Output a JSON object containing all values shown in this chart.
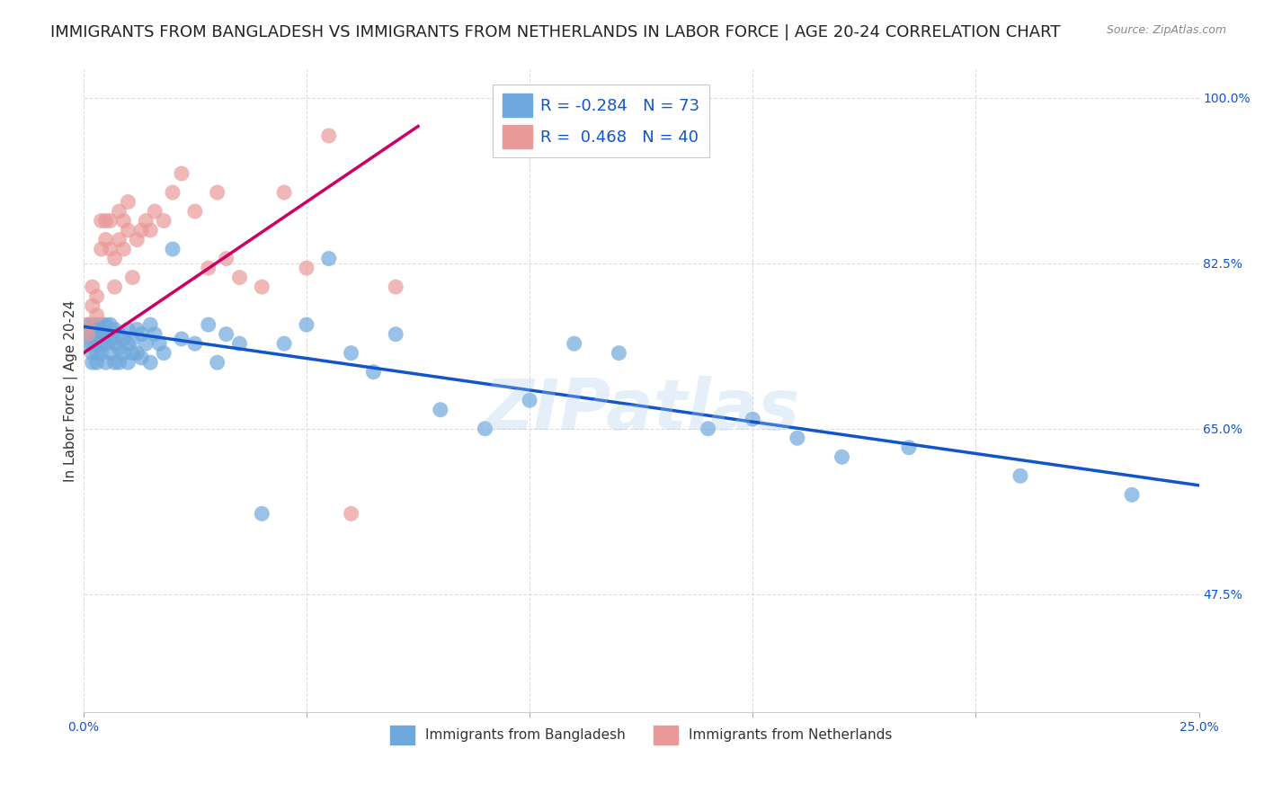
{
  "title": "IMMIGRANTS FROM BANGLADESH VS IMMIGRANTS FROM NETHERLANDS IN LABOR FORCE | AGE 20-24 CORRELATION CHART",
  "source": "Source: ZipAtlas.com",
  "ylabel": "In Labor Force | Age 20-24",
  "xlim": [
    0.0,
    0.25
  ],
  "ylim": [
    0.35,
    1.03
  ],
  "xticks": [
    0.0,
    0.05,
    0.1,
    0.15,
    0.2,
    0.25
  ],
  "xticklabels": [
    "0.0%",
    "",
    "",
    "",
    "",
    "25.0%"
  ],
  "yticks": [
    0.475,
    0.65,
    0.825,
    1.0
  ],
  "yticklabels": [
    "47.5%",
    "65.0%",
    "82.5%",
    "100.0%"
  ],
  "blue_color": "#6fa8dc",
  "pink_color": "#ea9999",
  "blue_line_color": "#1155cc",
  "pink_line_color": "#cc0066",
  "legend_r_blue": "-0.284",
  "legend_n_blue": "73",
  "legend_r_pink": "0.468",
  "legend_n_pink": "40",
  "watermark": "ZIPatlas",
  "blue_scatter_x": [
    0.001,
    0.001,
    0.001,
    0.002,
    0.002,
    0.002,
    0.002,
    0.002,
    0.003,
    0.003,
    0.003,
    0.003,
    0.003,
    0.004,
    0.004,
    0.004,
    0.004,
    0.005,
    0.005,
    0.005,
    0.005,
    0.006,
    0.006,
    0.006,
    0.007,
    0.007,
    0.007,
    0.008,
    0.008,
    0.008,
    0.009,
    0.009,
    0.01,
    0.01,
    0.01,
    0.011,
    0.011,
    0.012,
    0.012,
    0.013,
    0.013,
    0.014,
    0.015,
    0.015,
    0.016,
    0.017,
    0.018,
    0.02,
    0.022,
    0.025,
    0.028,
    0.03,
    0.032,
    0.035,
    0.04,
    0.045,
    0.05,
    0.055,
    0.06,
    0.065,
    0.07,
    0.08,
    0.09,
    0.1,
    0.11,
    0.12,
    0.14,
    0.15,
    0.16,
    0.17,
    0.185,
    0.21,
    0.235
  ],
  "blue_scatter_y": [
    0.76,
    0.75,
    0.74,
    0.76,
    0.75,
    0.74,
    0.73,
    0.72,
    0.76,
    0.75,
    0.74,
    0.73,
    0.72,
    0.76,
    0.75,
    0.74,
    0.73,
    0.76,
    0.75,
    0.74,
    0.72,
    0.76,
    0.745,
    0.73,
    0.755,
    0.74,
    0.72,
    0.75,
    0.735,
    0.72,
    0.745,
    0.73,
    0.755,
    0.74,
    0.72,
    0.745,
    0.73,
    0.755,
    0.73,
    0.75,
    0.725,
    0.74,
    0.76,
    0.72,
    0.75,
    0.74,
    0.73,
    0.84,
    0.745,
    0.74,
    0.76,
    0.72,
    0.75,
    0.74,
    0.56,
    0.74,
    0.76,
    0.83,
    0.73,
    0.71,
    0.75,
    0.67,
    0.65,
    0.68,
    0.74,
    0.73,
    0.65,
    0.66,
    0.64,
    0.62,
    0.63,
    0.6,
    0.58
  ],
  "pink_scatter_x": [
    0.001,
    0.001,
    0.002,
    0.002,
    0.003,
    0.003,
    0.004,
    0.004,
    0.005,
    0.005,
    0.006,
    0.006,
    0.007,
    0.007,
    0.008,
    0.008,
    0.009,
    0.009,
    0.01,
    0.01,
    0.011,
    0.012,
    0.013,
    0.014,
    0.015,
    0.016,
    0.018,
    0.02,
    0.022,
    0.025,
    0.028,
    0.03,
    0.032,
    0.035,
    0.04,
    0.045,
    0.05,
    0.055,
    0.06,
    0.07
  ],
  "pink_scatter_y": [
    0.76,
    0.75,
    0.8,
    0.78,
    0.79,
    0.77,
    0.87,
    0.84,
    0.87,
    0.85,
    0.87,
    0.84,
    0.83,
    0.8,
    0.88,
    0.85,
    0.87,
    0.84,
    0.89,
    0.86,
    0.81,
    0.85,
    0.86,
    0.87,
    0.86,
    0.88,
    0.87,
    0.9,
    0.92,
    0.88,
    0.82,
    0.9,
    0.83,
    0.81,
    0.8,
    0.9,
    0.82,
    0.96,
    0.56,
    0.8
  ],
  "blue_trend_x": [
    0.0,
    0.25
  ],
  "blue_trend_y": [
    0.758,
    0.59
  ],
  "pink_trend_x": [
    0.0,
    0.075
  ],
  "pink_trend_y": [
    0.73,
    0.97
  ],
  "grid_color": "#dddddd",
  "background_color": "#ffffff",
  "title_fontsize": 13,
  "axis_label_fontsize": 11,
  "tick_fontsize": 10,
  "legend_fontsize": 13
}
